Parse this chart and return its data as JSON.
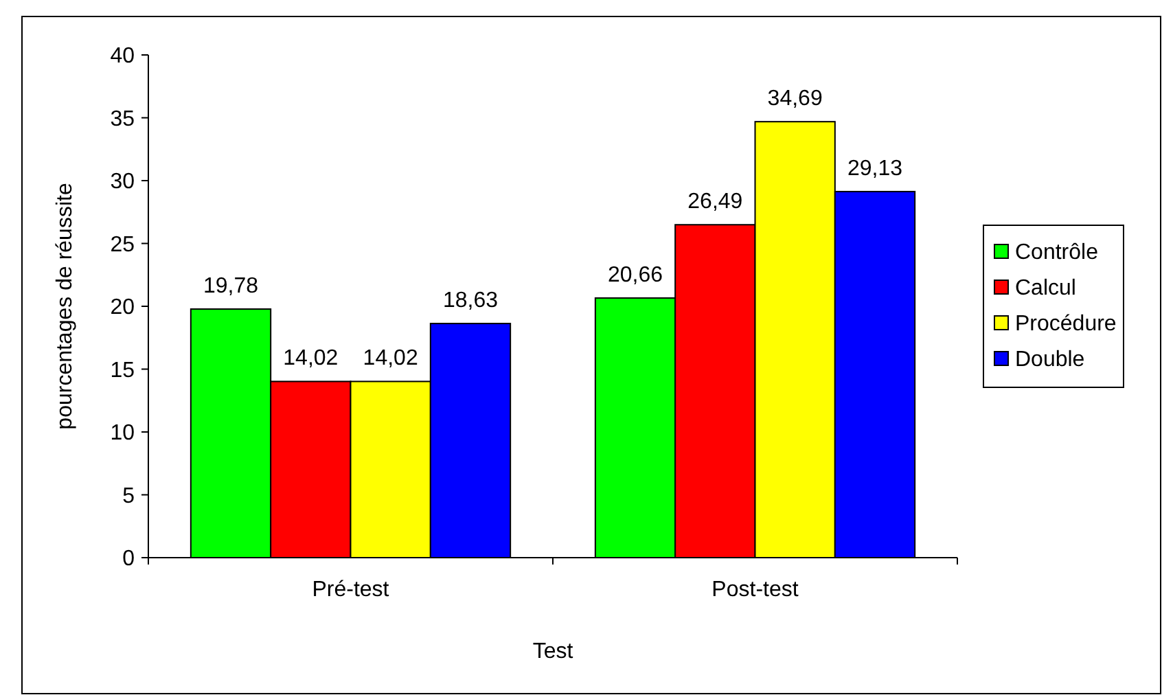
{
  "chart_data": {
    "type": "bar",
    "xlabel": "Test",
    "ylabel": "pourcentages de réussite",
    "categories": [
      "Pré-test",
      "Post-test"
    ],
    "series": [
      {
        "name": "Contrôle",
        "color": "#00ff00",
        "values": [
          19.78,
          20.66
        ],
        "value_labels": [
          "19,78",
          "20,66"
        ]
      },
      {
        "name": "Calcul",
        "color": "#ff0000",
        "values": [
          14.02,
          26.49
        ],
        "value_labels": [
          "14,02",
          "26,49"
        ]
      },
      {
        "name": "Procédure",
        "color": "#ffff00",
        "values": [
          14.02,
          34.69
        ],
        "value_labels": [
          "14,02",
          "34,69"
        ]
      },
      {
        "name": "Double",
        "color": "#0000ff",
        "values": [
          18.63,
          29.13
        ],
        "value_labels": [
          "18,63",
          "29,13"
        ]
      }
    ],
    "ylim": [
      0,
      40
    ],
    "yticks": [
      0,
      5,
      10,
      15,
      20,
      25,
      30,
      35,
      40
    ],
    "grid": false,
    "legend": "right"
  }
}
